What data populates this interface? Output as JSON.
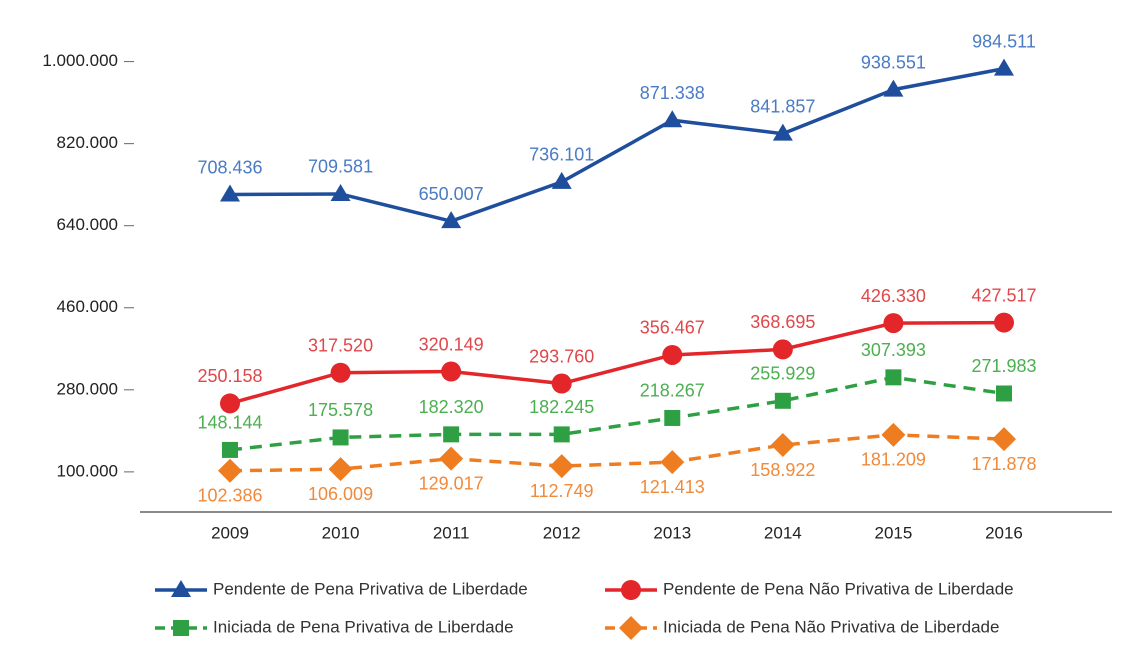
{
  "chart_data": {
    "type": "line",
    "categories": [
      "2009",
      "2010",
      "2011",
      "2012",
      "2013",
      "2014",
      "2015",
      "2016"
    ],
    "ylim": [
      12000,
      1100000
    ],
    "yticks": [
      {
        "value": 100000,
        "label": "100.000"
      },
      {
        "value": 280000,
        "label": "280.000"
      },
      {
        "value": 460000,
        "label": "460.000"
      },
      {
        "value": 640000,
        "label": "640.000"
      },
      {
        "value": 820000,
        "label": "820.000"
      },
      {
        "value": 1000000,
        "label": "1.000.000"
      }
    ],
    "series": [
      {
        "name": "Pendente de Pena Privativa de Liberdade",
        "color": "#1f4e9c",
        "label_color": "#4a7bc4",
        "marker": "triangle",
        "dashed": false,
        "values": [
          708436,
          709581,
          650007,
          736101,
          871338,
          841857,
          938551,
          984511
        ],
        "value_labels": [
          "708.436",
          "709.581",
          "650.007",
          "736.101",
          "871.338",
          "841.857",
          "938.551",
          "984.511"
        ]
      },
      {
        "name": "Pendente de Pena Não Privativa de Liberdade",
        "color": "#e3262a",
        "label_color": "#e0474a",
        "marker": "circle",
        "dashed": false,
        "values": [
          250158,
          317520,
          320149,
          293760,
          356467,
          368695,
          426330,
          427517
        ],
        "value_labels": [
          "250.158",
          "317.520",
          "320.149",
          "293.760",
          "356.467",
          "368.695",
          "426.330",
          "427.517"
        ]
      },
      {
        "name": "Iniciada de Pena Privativa de Liberdade",
        "color": "#2ea043",
        "label_color": "#4caf50",
        "marker": "square",
        "dashed": true,
        "values": [
          148144,
          175578,
          182320,
          182245,
          218267,
          255929,
          307393,
          271983
        ],
        "value_labels": [
          "148.144",
          "175.578",
          "182.320",
          "182.245",
          "218.267",
          "255.929",
          "307.393",
          "271.983"
        ]
      },
      {
        "name": "Iniciada de Pena Não Privativa de Liberdade",
        "color": "#ee7d22",
        "label_color": "#f08a3c",
        "marker": "diamond",
        "dashed": true,
        "values": [
          102386,
          106009,
          129017,
          112749,
          121413,
          158922,
          181209,
          171878
        ],
        "value_labels": [
          "102.386",
          "106.009",
          "129.017",
          "112.749",
          "121.413",
          "158.922",
          "181.209",
          "171.878"
        ]
      }
    ]
  }
}
